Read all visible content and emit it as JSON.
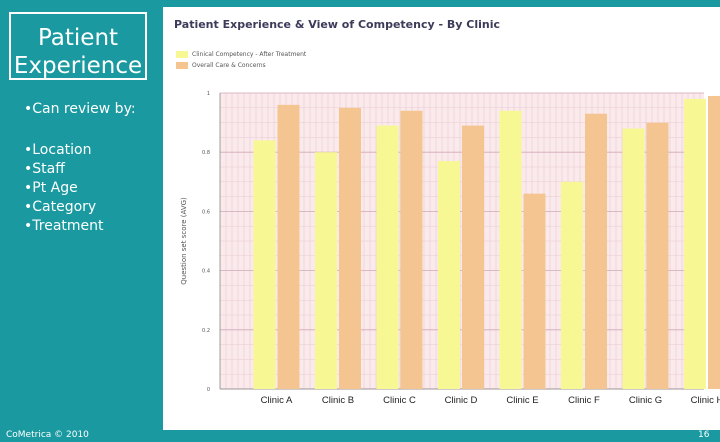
{
  "slide": {
    "title": "Patient Experience",
    "review_heading": "•Can review by:",
    "review_items": [
      "•Location",
      "•Staff",
      "•Pt Age",
      "•Category",
      "•Treatment"
    ],
    "footer": "CoMetrica © 2010",
    "page_number": "16",
    "background_color": "#1a9aa0"
  },
  "chart": {
    "title": "Patient Experience & View of Competency - By Clinic",
    "legend": [
      "Clinical Competency - After Treatment",
      "Overall Care & Concerns"
    ]
  },
  "chart_data": {
    "type": "bar",
    "title": "Patient Experience & View of Competency - By Clinic",
    "xlabel": "",
    "ylabel": "Question set score (AVG)",
    "ylim": [
      0,
      1
    ],
    "yticks": [
      "0",
      "0.2",
      "0.4",
      "0.6",
      "0.8",
      "1"
    ],
    "grid": true,
    "legend_position": "top-left",
    "categories": [
      "Clinic A",
      "Clinic B",
      "Clinic C",
      "Clinic D",
      "Clinic E",
      "Clinic F",
      "Clinic G",
      "Clinic H"
    ],
    "series": [
      {
        "name": "Clinical Competency - After Treatment",
        "color": "#f7f794",
        "values": [
          0.84,
          0.8,
          0.89,
          0.77,
          0.94,
          0.7,
          0.88,
          0.98
        ]
      },
      {
        "name": "Overall Care & Concerns",
        "color": "#f5c591",
        "values": [
          0.96,
          0.95,
          0.94,
          0.89,
          0.66,
          0.93,
          0.9,
          0.99
        ]
      }
    ]
  }
}
